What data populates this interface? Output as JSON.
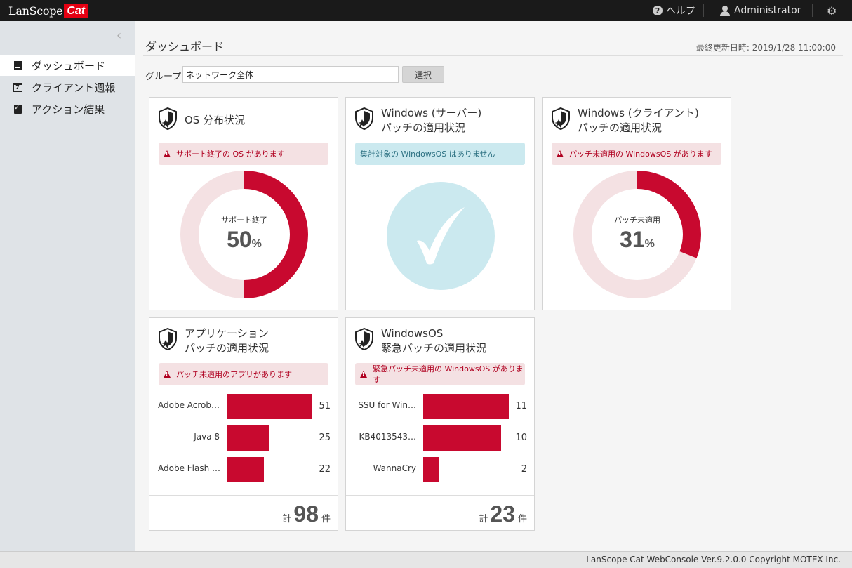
{
  "header": {
    "logo_text": "LanScope",
    "logo_badge": "Cat",
    "help_label": "ヘルプ",
    "user_label": "Administrator"
  },
  "sidebar": {
    "items": [
      {
        "label": "ダッシュボード",
        "icon": "dashboard-icon",
        "active": true
      },
      {
        "label": "クライアント週報",
        "icon": "calendar-icon",
        "active": false
      },
      {
        "label": "アクション結果",
        "icon": "clipboard-icon",
        "active": false
      }
    ]
  },
  "page": {
    "title": "ダッシュボード",
    "last_updated": "最終更新日時: 2019/1/28 11:00:00",
    "group_label": "グループ:",
    "group_value": "ネットワーク全体",
    "select_button": "選択"
  },
  "colors": {
    "accent": "#c8092f",
    "ring_bg": "#f4e1e3",
    "info_bg": "#cbe9ef"
  },
  "cards": {
    "os": {
      "title_line1": "OS 分布状況",
      "alert": "サポート終了の OS があります",
      "donut_label": "サポート終了",
      "percent": 50,
      "percent_text": "50",
      "pct_sign": "%"
    },
    "win_server": {
      "title_line1": "Windows (サーバー)",
      "title_line2": "パッチの適用状況",
      "alert": "集計対象の WindowsOS はありません"
    },
    "win_client": {
      "title_line1": "Windows (クライアント)",
      "title_line2": "パッチの適用状況",
      "alert": "パッチ未適用の WindowsOS があります",
      "donut_label": "パッチ未適用",
      "percent": 31,
      "percent_text": "31",
      "pct_sign": "%"
    },
    "app": {
      "title_line1": "アプリケーション",
      "title_line2": "パッチの適用状況",
      "alert": "パッチ未適用のアプリがあります",
      "bars": [
        {
          "label": "Adobe Acrob…",
          "value": 51,
          "value_text": "51"
        },
        {
          "label": "Java 8",
          "value": 25,
          "value_text": "25"
        },
        {
          "label": "Adobe Flash …",
          "value": 22,
          "value_text": "22"
        }
      ],
      "total_prefix": "計",
      "total": "98",
      "total_suffix": "件"
    },
    "win_os": {
      "title_line1": "WindowsOS",
      "title_line2": "緊急パッチの適用状況",
      "alert": "緊急パッチ未適用の WindowsOS があります",
      "bars": [
        {
          "label": "SSU for Win…",
          "value": 11,
          "value_text": "11"
        },
        {
          "label": "KB4013543…",
          "value": 10,
          "value_text": "10"
        },
        {
          "label": "WannaCry",
          "value": 2,
          "value_text": "2"
        }
      ],
      "total_prefix": "計",
      "total": "23",
      "total_suffix": "件"
    }
  },
  "footer": {
    "text": "LanScope Cat WebConsole Ver.9.2.0.0 Copyright MOTEX Inc."
  }
}
